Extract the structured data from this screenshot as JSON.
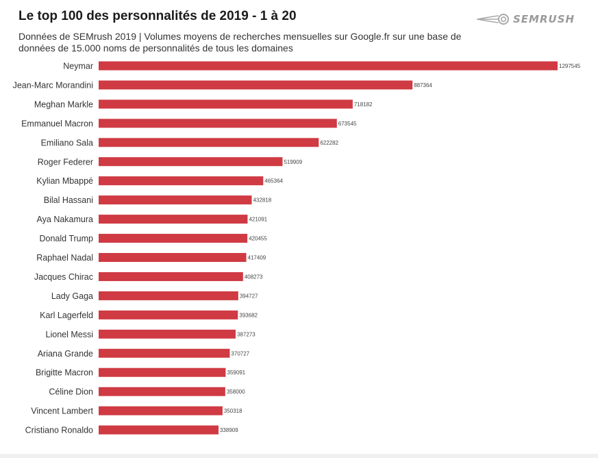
{
  "header": {
    "title": "Le top 100 des personnalités de 2019 - 1 à 20",
    "subtitle": "Données de SEMrush 2019 | Volumes moyens de recherches mensuelles sur Google.fr sur une base de données de 15.000 noms de personnalités de tous les domaines",
    "brand": "SEMRUSH",
    "brand_icon": "semrush-fireball-icon"
  },
  "colors": {
    "bar": "#cf3a43",
    "label": "#333333",
    "value": "#444444",
    "brand": "#9a9a9a"
  },
  "chart_data": {
    "type": "bar",
    "orientation": "horizontal",
    "categories": [
      "Neymar",
      "Jean-Marc Morandini",
      "Meghan Markle",
      "Emmanuel Macron",
      "Emiliano Sala",
      "Roger Federer",
      "Kylian Mbappé",
      "Bilal Hassani",
      "Aya Nakamura",
      "Donald Trump",
      "Raphael Nadal",
      "Jacques Chirac",
      "Lady Gaga",
      "Karl Lagerfeld",
      "Lionel Messi",
      "Ariana Grande",
      "Brigitte Macron",
      "Céline Dion",
      "Vincent Lambert",
      "Cristiano Ronaldo"
    ],
    "values": [
      1297545,
      887364,
      718182,
      673545,
      622282,
      519909,
      465364,
      432818,
      421091,
      420455,
      417409,
      408273,
      394727,
      393682,
      387273,
      370727,
      359091,
      358000,
      350318,
      338909
    ],
    "grid": false,
    "legend": "none"
  }
}
